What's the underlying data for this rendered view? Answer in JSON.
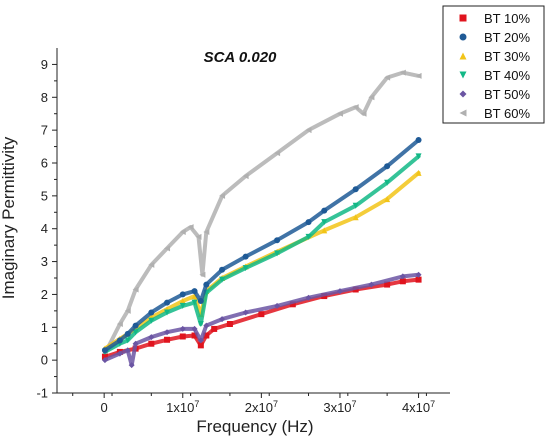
{
  "chart_data": {
    "type": "scatter",
    "title": "SCA 0.020",
    "xlabel": "Frequency (Hz)",
    "ylabel": "Imaginary Permittivity",
    "xlim": [
      -6000000,
      44000000
    ],
    "ylim": [
      -1,
      9.5
    ],
    "x_ticks": [
      {
        "value": 0,
        "label": "0",
        "exp": ""
      },
      {
        "value": 10000000,
        "label": "1x10",
        "exp": "7"
      },
      {
        "value": 20000000,
        "label": "2x10",
        "exp": "7"
      },
      {
        "value": 30000000,
        "label": "3x10",
        "exp": "7"
      },
      {
        "value": 40000000,
        "label": "4x10",
        "exp": "7"
      }
    ],
    "y_ticks": [
      -1,
      0,
      1,
      2,
      3,
      4,
      5,
      6,
      7,
      8,
      9
    ],
    "legend_position": "top-right",
    "grid": false,
    "series": [
      {
        "name": "BT 10%",
        "color": "#e0141e",
        "marker": "square",
        "x": [
          100000,
          2000000,
          4000000,
          6000000,
          8000000,
          10000000,
          11500000,
          12300000,
          13000000,
          14000000,
          16000000,
          20000000,
          24000000,
          28000000,
          32000000,
          36000000,
          38000000,
          40000000
        ],
        "y": [
          0.1,
          0.25,
          0.35,
          0.5,
          0.62,
          0.72,
          0.75,
          0.45,
          0.75,
          0.95,
          1.1,
          1.4,
          1.7,
          1.95,
          2.15,
          2.3,
          2.4,
          2.45
        ]
      },
      {
        "name": "BT 20%",
        "color": "#1f5a96",
        "marker": "circle",
        "x": [
          100000,
          2000000,
          3000000,
          4000000,
          6000000,
          8000000,
          10000000,
          11500000,
          12300000,
          13000000,
          15000000,
          18000000,
          22000000,
          26000000,
          28000000,
          32000000,
          36000000,
          40000000
        ],
        "y": [
          0.3,
          0.6,
          0.8,
          1.05,
          1.45,
          1.75,
          2.0,
          2.1,
          1.8,
          2.3,
          2.75,
          3.15,
          3.65,
          4.2,
          4.55,
          5.2,
          5.9,
          6.7
        ]
      },
      {
        "name": "BT 30%",
        "color": "#f2c418",
        "marker": "triangle",
        "x": [
          100000,
          2000000,
          3000000,
          4000000,
          6000000,
          8000000,
          10000000,
          11500000,
          12300000,
          13000000,
          15000000,
          18000000,
          22000000,
          28000000,
          32000000,
          36000000,
          40000000
        ],
        "y": [
          0.35,
          0.65,
          0.8,
          0.95,
          1.3,
          1.55,
          1.8,
          1.95,
          1.4,
          2.1,
          2.5,
          2.85,
          3.3,
          3.95,
          4.35,
          4.9,
          5.7
        ]
      },
      {
        "name": "BT 40%",
        "color": "#12b886",
        "marker": "triangle-down",
        "x": [
          100000,
          2000000,
          3000000,
          4000000,
          6000000,
          8000000,
          10000000,
          11500000,
          12300000,
          13000000,
          15000000,
          18000000,
          22000000,
          26000000,
          28000000,
          32000000,
          36000000,
          40000000
        ],
        "y": [
          0.25,
          0.5,
          0.6,
          0.85,
          1.2,
          1.45,
          1.65,
          1.75,
          1.1,
          2.05,
          2.45,
          2.8,
          3.25,
          3.75,
          4.2,
          4.7,
          5.4,
          6.2
        ]
      },
      {
        "name": "BT 50%",
        "color": "#6b55a3",
        "marker": "diamond",
        "x": [
          100000,
          2000000,
          3000000,
          3500000,
          4000000,
          6000000,
          8000000,
          10000000,
          11500000,
          12300000,
          13000000,
          15000000,
          18000000,
          22000000,
          26000000,
          30000000,
          34000000,
          38000000,
          40000000
        ],
        "y": [
          0.0,
          0.2,
          0.3,
          -0.15,
          0.5,
          0.7,
          0.85,
          0.95,
          0.95,
          0.6,
          1.05,
          1.25,
          1.45,
          1.65,
          1.9,
          2.1,
          2.3,
          2.55,
          2.6
        ]
      },
      {
        "name": "BT 60%",
        "color": "#b0b0b0",
        "marker": "triangle-left",
        "x": [
          100000,
          2000000,
          3000000,
          4000000,
          6000000,
          8000000,
          10000000,
          11000000,
          12000000,
          12500000,
          13000000,
          15000000,
          18000000,
          22000000,
          26000000,
          30000000,
          32000000,
          33000000,
          34000000,
          36000000,
          38000000,
          40000000
        ],
        "y": [
          0.2,
          1.1,
          1.5,
          2.15,
          2.9,
          3.4,
          3.9,
          4.05,
          3.75,
          2.6,
          3.9,
          5.0,
          5.6,
          6.3,
          7.0,
          7.5,
          7.7,
          7.5,
          8.0,
          8.6,
          8.75,
          8.65
        ]
      }
    ]
  }
}
